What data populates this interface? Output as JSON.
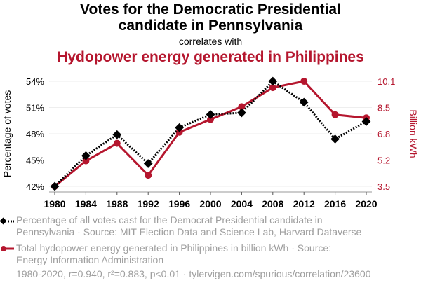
{
  "header": {
    "title_line1": "Votes for the Democratic Presidential",
    "title_line2": "candidate in Pennsylvania",
    "subtitle": "correlates with",
    "title2": "Hydopower energy generated in Philippines"
  },
  "colors": {
    "series1": "#000000",
    "series2": "#B5162E",
    "grid": "#eeeeee",
    "legend_text": "#9e9e9e"
  },
  "chart_data": {
    "type": "line",
    "title": "Votes for the Democratic Presidential candidate in Pennsylvania correlates with Hydopower energy generated in Philippines",
    "x": [
      1980,
      1984,
      1988,
      1992,
      1996,
      2000,
      2004,
      2008,
      2012,
      2016,
      2020
    ],
    "x_tick_labels": [
      "1980",
      "1984",
      "1988",
      "1992",
      "1996",
      "2000",
      "2004",
      "2008",
      "2012",
      "2016",
      "2020"
    ],
    "xlabel": "",
    "y_left": {
      "label": "Percentage of votes",
      "range": [
        42,
        54
      ],
      "ticks": [
        42,
        45,
        48,
        51,
        54
      ],
      "tick_labels": [
        "42%",
        "45%",
        "48%",
        "51%",
        "54%"
      ]
    },
    "y_right": {
      "label": "Billion kWh",
      "range": [
        3.5,
        10.1
      ],
      "ticks": [
        3.5,
        5.15,
        6.8,
        8.45,
        10.1
      ],
      "tick_labels": [
        "3.5",
        "5.2",
        "6.8",
        "8.5",
        "10.1"
      ]
    },
    "grid": true,
    "series": [
      {
        "name": "Percentage of all votes cast for the Democrat Presidential candidate in Pennsylvania",
        "axis": "left",
        "style": "dotted-black-diamond",
        "values": [
          42.0,
          45.5,
          47.9,
          44.6,
          48.7,
          50.2,
          50.4,
          54.0,
          51.6,
          47.4,
          49.4
        ]
      },
      {
        "name": "Total hydopower energy generated in Philippines in billion kWh",
        "axis": "right",
        "style": "solid-red-circle",
        "values": [
          3.5,
          5.1,
          6.2,
          4.2,
          6.9,
          7.7,
          8.5,
          9.7,
          10.1,
          8.0,
          7.8
        ]
      }
    ]
  },
  "legend": {
    "items": [
      {
        "line1": "Percentage of all votes cast for the Democrat Presidential candidate in",
        "line2": "Pennsylvania · Source: MIT Election Data and Science Lab, Harvard Dataverse"
      },
      {
        "line1": "Total hydopower energy generated in Philippines in billion kWh · Source:",
        "line2": "Energy Information Administration"
      }
    ]
  },
  "footer": "1980-2020, r=0.940, r²=0.883, p<0.01 · tylervigen.com/spurious/correlation/23600"
}
